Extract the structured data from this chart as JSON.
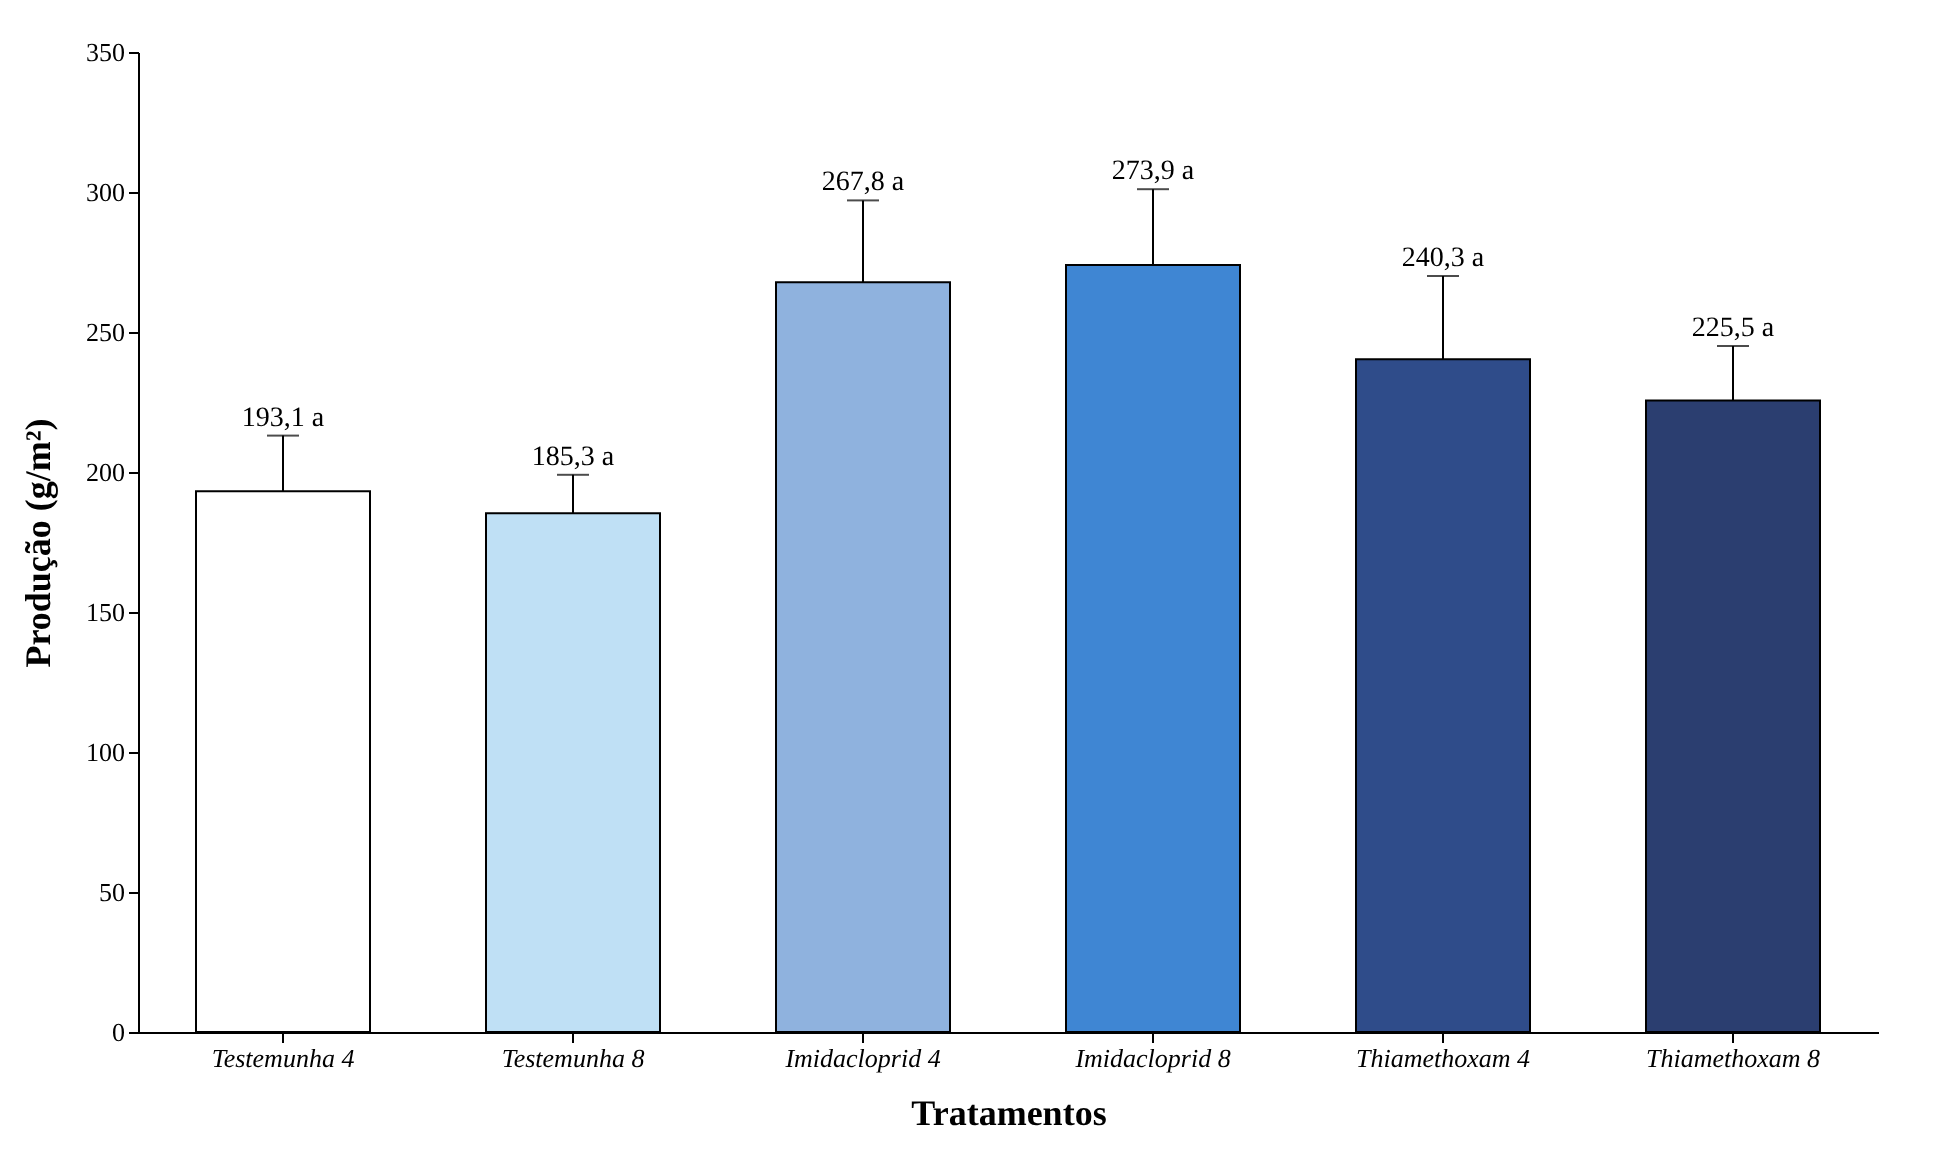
{
  "chart_data": {
    "type": "bar",
    "xlabel": "Tratamentos",
    "ylabel": "Produção (g/m²)",
    "categories": [
      "Testemunha 4",
      "Testemunha 8",
      "Imidacloprid 4",
      "Imidacloprid 8",
      "Thiamethoxam 4",
      "Thiamethoxam 8"
    ],
    "values": [
      193.1,
      185.3,
      267.8,
      273.9,
      240.3,
      225.5
    ],
    "colors": [
      "#ffffff",
      "#bfe0f5",
      "#8fb2de",
      "#3f86d3",
      "#2f4c8a",
      "#2b3e70"
    ],
    "errors": [
      [
        193.1,
        213
      ],
      [
        185.3,
        199
      ],
      [
        267.8,
        297
      ],
      [
        273.9,
        301
      ],
      [
        240.3,
        270
      ],
      [
        225.5,
        245
      ]
    ],
    "value_labels": [
      "193,1 a",
      "185,3 a",
      "267,8 a",
      "273,9 a",
      "240,3 a",
      "225,5 a"
    ],
    "ylim": [
      0,
      350
    ],
    "yticks": [
      0,
      50,
      100,
      150,
      200,
      250,
      300,
      350
    ],
    "grid": false
  }
}
